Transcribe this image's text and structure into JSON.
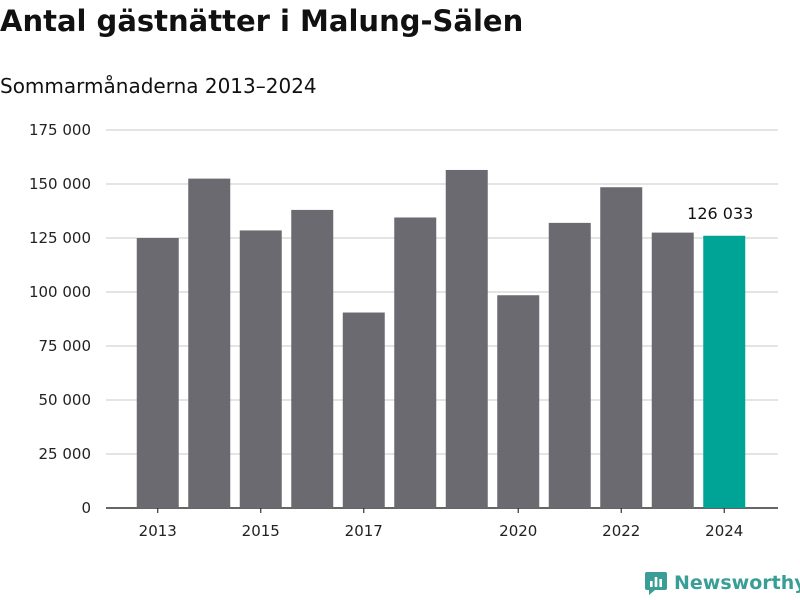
{
  "chart_data": {
    "type": "bar",
    "title": "Antal gästnätter i Malung-Sälen",
    "subtitle": "Sommarmånaderna 2013–2024",
    "xlabel": "",
    "ylabel": "",
    "categories": [
      2013,
      2014,
      2015,
      2016,
      2017,
      2018,
      2019,
      2020,
      2021,
      2022,
      2023,
      2024
    ],
    "x_tick_labels": [
      "2013",
      "2015",
      "2017",
      "2020",
      "2022",
      "2024"
    ],
    "values": [
      125000,
      152500,
      128500,
      138000,
      90500,
      134500,
      156500,
      98500,
      132000,
      148500,
      127500,
      126033
    ],
    "ylim": [
      0,
      175000
    ],
    "y_ticks": [
      0,
      25000,
      50000,
      75000,
      100000,
      125000,
      150000,
      175000
    ],
    "y_tick_labels": [
      "0",
      "25 000",
      "50 000",
      "75 000",
      "100 000",
      "125 000",
      "150 000",
      "175 000"
    ],
    "grid": true,
    "highlight": {
      "category": 2024,
      "label": "126 033"
    },
    "colors": {
      "bar": "#6b6a70",
      "highlight": "#00a497",
      "grid": "#dcdcdc",
      "axis": "#333333"
    }
  },
  "branding": {
    "name": "Newsworthy",
    "icon": "bar-chart-logo-icon",
    "color": "#3a9e96"
  }
}
